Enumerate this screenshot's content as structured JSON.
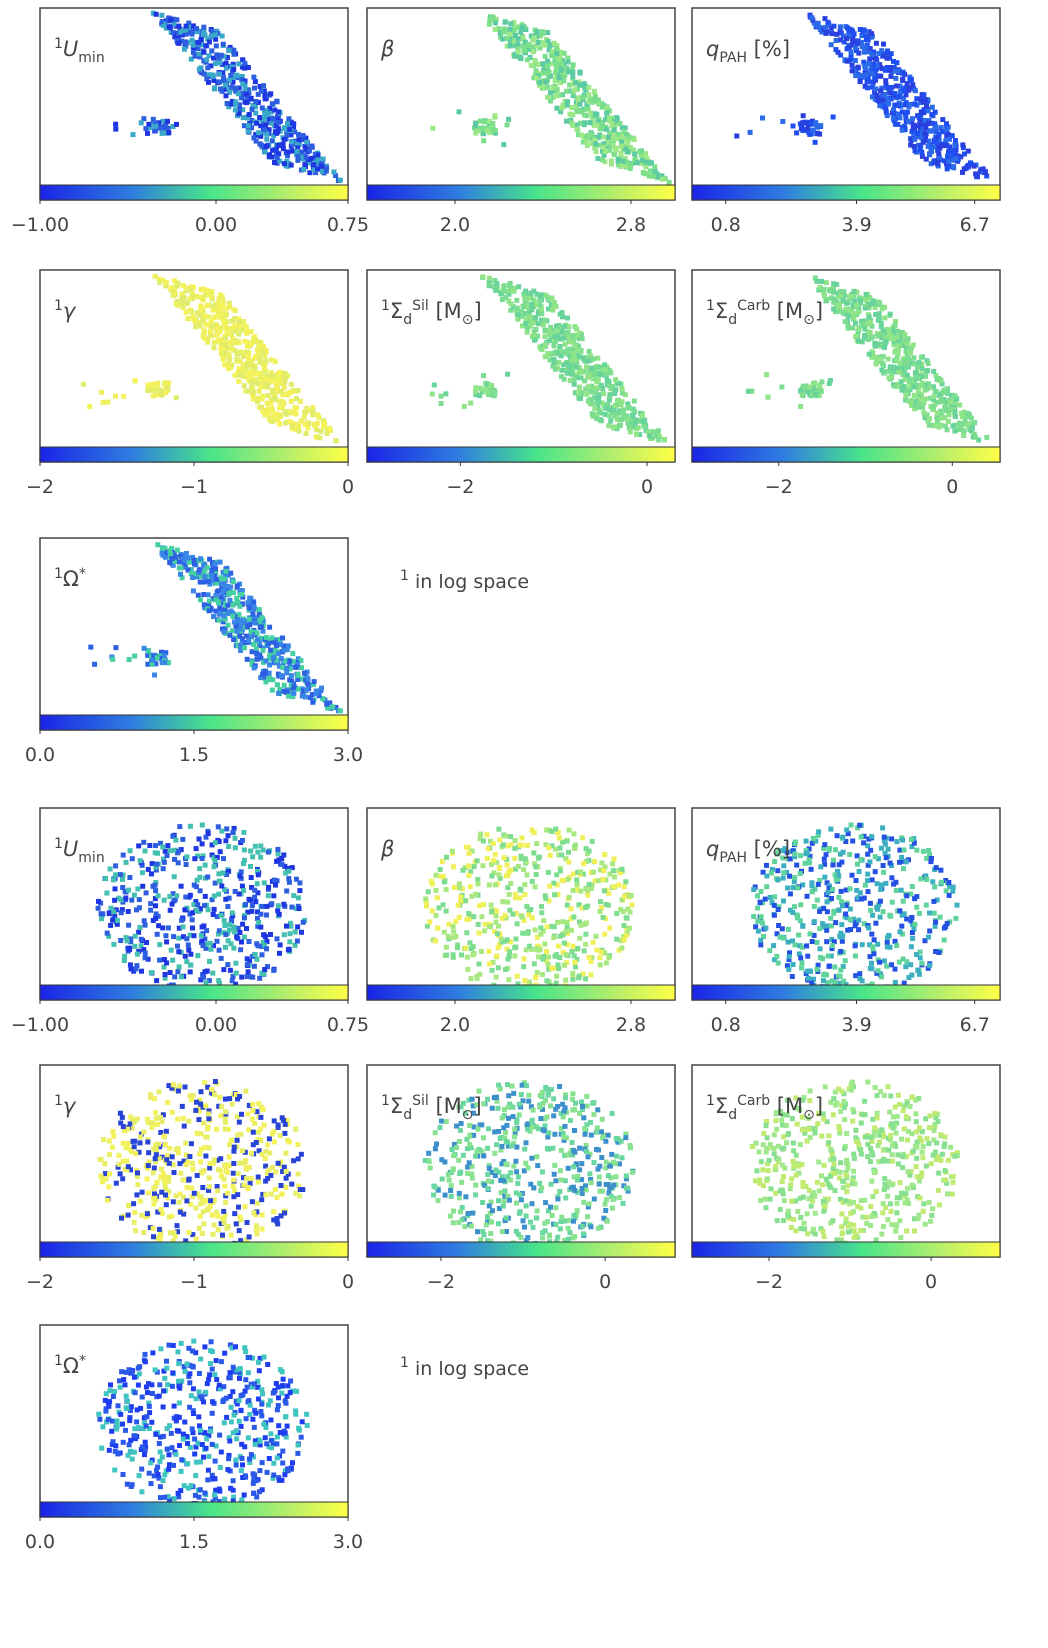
{
  "figures": [
    {
      "panels": [
        {
          "label": [
            {
              "t": "1",
              "s": "sup"
            },
            {
              "t": "U",
              "s": "it"
            },
            {
              "t": "min",
              "s": "sub"
            }
          ],
          "cbar": {
            "lim": [
              -1,
              0.75
            ],
            "ticks": [
              {
                "value": -1,
                "label": "−1.00"
              },
              {
                "value": 0,
                "label": "0.00"
              },
              {
                "value": 0.75,
                "label": "0.75"
              }
            ]
          }
        },
        {
          "label": [
            {
              "t": "β",
              "s": "it"
            }
          ],
          "cbar": {
            "lim": [
              1.6,
              3.0
            ],
            "ticks": [
              {
                "value": 2,
                "label": "2.0"
              },
              2.8
            ]
          }
        },
        {
          "label": [
            {
              "t": "q",
              "s": "it"
            },
            {
              "t": "PAH",
              "s": "sub"
            },
            {
              "t": " [%]",
              "s": "up"
            }
          ],
          "cbar": {
            "lim": [
              0,
              7.3
            ],
            "ticks": [
              0.8,
              3.9,
              6.7
            ]
          }
        },
        {
          "label": [
            {
              "t": "1",
              "s": "sup"
            },
            {
              "t": "γ",
              "s": "it"
            }
          ],
          "cbar": {
            "lim": [
              -2,
              0
            ],
            "ticks": [
              {
                "value": -2,
                "label": "−2"
              },
              {
                "value": -1,
                "label": "−1"
              },
              0
            ]
          }
        },
        {
          "label": [
            {
              "t": "1",
              "s": "sup"
            },
            {
              "t": "Σ",
              "s": "up"
            },
            {
              "t": "d",
              "s": "sub"
            },
            {
              "t": "Sil",
              "s": "sup"
            },
            {
              "t": " [M",
              "s": "up"
            },
            {
              "t": "⊙",
              "s": "sub"
            },
            {
              "t": "]",
              "s": "up"
            }
          ],
          "cbar": {
            "lim": [
              -3,
              0.3
            ],
            "ticks": [
              {
                "value": -2,
                "label": "−2"
              },
              0
            ]
          }
        },
        {
          "label": [
            {
              "t": "1",
              "s": "sup"
            },
            {
              "t": "Σ",
              "s": "up"
            },
            {
              "t": "d",
              "s": "sub"
            },
            {
              "t": "Carb",
              "s": "sup"
            },
            {
              "t": " [M",
              "s": "up"
            },
            {
              "t": "⊙",
              "s": "sub"
            },
            {
              "t": "]",
              "s": "up"
            }
          ],
          "cbar": {
            "lim": [
              -3,
              0.55
            ],
            "ticks": [
              {
                "value": -2,
                "label": "−2"
              },
              0
            ]
          }
        },
        {
          "label": [
            {
              "t": "1",
              "s": "sup"
            },
            {
              "t": "Ω",
              "s": "up"
            },
            {
              "t": "*",
              "s": "sup"
            }
          ],
          "cbar": {
            "lim": [
              0,
              3
            ],
            "ticks": [
              {
                "value": 0,
                "label": "0.0"
              },
              1.5,
              {
                "value": 3,
                "label": "3.0"
              }
            ]
          }
        }
      ],
      "note": [
        {
          "t": "1",
          "s": "sup"
        },
        {
          "t": " in log space",
          "s": "up"
        }
      ]
    },
    {
      "panels": [
        {
          "label": [
            {
              "t": "1",
              "s": "sup"
            },
            {
              "t": "U",
              "s": "it"
            },
            {
              "t": "min",
              "s": "sub"
            }
          ],
          "cbar": {
            "lim": [
              -1,
              0.75
            ],
            "ticks": [
              {
                "value": -1,
                "label": "−1.00"
              },
              {
                "value": 0,
                "label": "0.00"
              },
              {
                "value": 0.75,
                "label": "0.75"
              }
            ]
          }
        },
        {
          "label": [
            {
              "t": "β",
              "s": "it"
            }
          ],
          "cbar": {
            "lim": [
              1.6,
              3.0
            ],
            "ticks": [
              {
                "value": 2,
                "label": "2.0"
              },
              2.8
            ]
          }
        },
        {
          "label": [
            {
              "t": "q",
              "s": "it"
            },
            {
              "t": "PAH",
              "s": "sub"
            },
            {
              "t": " [%]",
              "s": "up"
            }
          ],
          "cbar": {
            "lim": [
              0,
              7.3
            ],
            "ticks": [
              0.8,
              3.9,
              6.7
            ]
          }
        },
        {
          "label": [
            {
              "t": "1",
              "s": "sup"
            },
            {
              "t": "γ",
              "s": "it"
            }
          ],
          "cbar": {
            "lim": [
              -2,
              0
            ],
            "ticks": [
              {
                "value": -2,
                "label": "−2"
              },
              {
                "value": -1,
                "label": "−1"
              },
              0
            ]
          }
        },
        {
          "label": [
            {
              "t": "1",
              "s": "sup"
            },
            {
              "t": "Σ",
              "s": "up"
            },
            {
              "t": "d",
              "s": "sub"
            },
            {
              "t": "Sil",
              "s": "sup"
            },
            {
              "t": " [M",
              "s": "up"
            },
            {
              "t": "⊙",
              "s": "sub"
            },
            {
              "t": "]",
              "s": "up"
            }
          ],
          "cbar": {
            "lim": [
              -2.9,
              0.85
            ],
            "ticks": [
              {
                "value": -2,
                "label": "−2"
              },
              0
            ]
          }
        },
        {
          "label": [
            {
              "t": "1",
              "s": "sup"
            },
            {
              "t": "Σ",
              "s": "up"
            },
            {
              "t": "d",
              "s": "sub"
            },
            {
              "t": "Carb",
              "s": "sup"
            },
            {
              "t": " [M",
              "s": "up"
            },
            {
              "t": "⊙",
              "s": "sub"
            },
            {
              "t": "]",
              "s": "up"
            }
          ],
          "cbar": {
            "lim": [
              -2.95,
              0.85
            ],
            "ticks": [
              {
                "value": -2,
                "label": "−2"
              },
              0
            ]
          }
        },
        {
          "label": [
            {
              "t": "1",
              "s": "sup"
            },
            {
              "t": "Ω",
              "s": "up"
            },
            {
              "t": "*",
              "s": "sup"
            }
          ],
          "cbar": {
            "lim": [
              0,
              3
            ],
            "ticks": [
              {
                "value": 0,
                "label": "0.0"
              },
              1.5,
              {
                "value": 3,
                "label": "3.0"
              }
            ]
          }
        }
      ],
      "note": [
        {
          "t": "1",
          "s": "sup"
        },
        {
          "t": " in log space",
          "s": "up"
        }
      ]
    }
  ]
}
